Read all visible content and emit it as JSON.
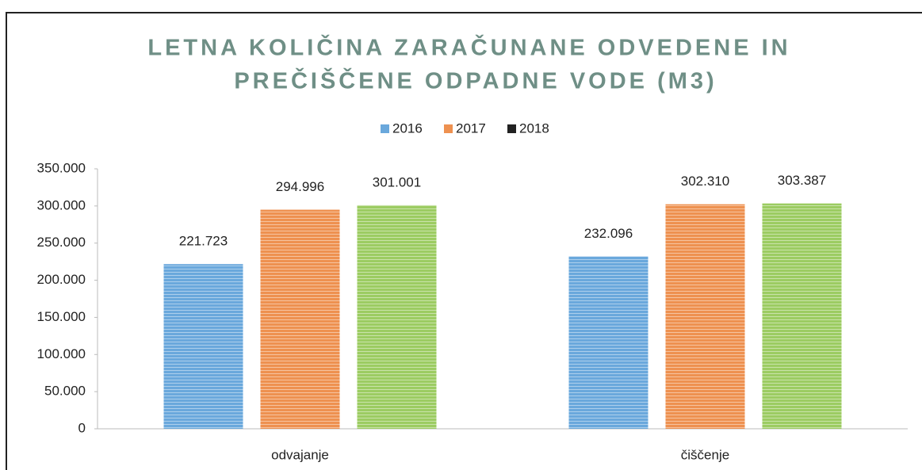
{
  "chart_data": {
    "type": "bar",
    "title": [
      "LETNA KOLIČINA ZARAČUNANE ODVEDENE IN",
      "PREČIŠČENE ODPADNE VODE (M3)"
    ],
    "categories": [
      "odvajanje",
      "čiščenje"
    ],
    "series": [
      {
        "name": "2016",
        "color": "#6aa8dc",
        "legend_color": "#6aa8dc",
        "values": [
          221723,
          232096
        ],
        "value_labels": [
          "221.723",
          "232.096"
        ]
      },
      {
        "name": "2017",
        "color": "#ee9150",
        "legend_color": "#ee9150",
        "values": [
          294996,
          302310
        ],
        "value_labels": [
          "294.996",
          "302.310"
        ]
      },
      {
        "name": "2018",
        "color": "#9ccc62",
        "legend_color": "#222222",
        "values": [
          301001,
          303387
        ],
        "value_labels": [
          "301.001",
          "303.387"
        ]
      }
    ],
    "ylim": [
      0,
      350000
    ],
    "yticks": [
      0,
      {
        "value": 50000,
        "label": "50.000"
      },
      {
        "value": 100000,
        "label": "100.000"
      },
      {
        "value": 150000,
        "label": "150.000"
      },
      {
        "value": 200000,
        "label": "200.000"
      },
      {
        "value": 250000,
        "label": "250.000"
      },
      {
        "value": 300000,
        "label": "300.000"
      },
      {
        "value": 350000,
        "label": "350.000"
      }
    ],
    "grid": false,
    "legend": "top"
  }
}
